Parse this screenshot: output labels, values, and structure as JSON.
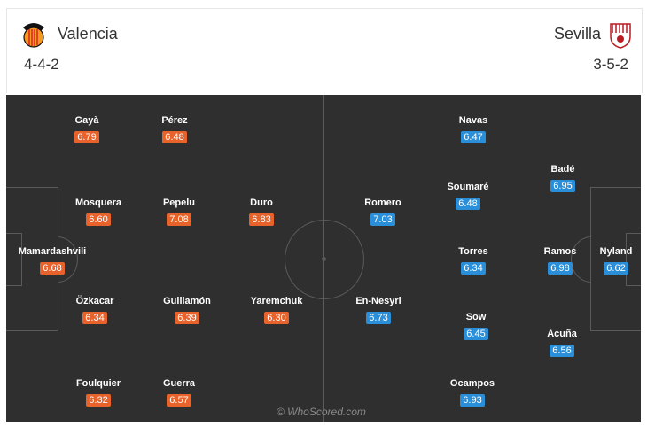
{
  "home": {
    "name": "Valencia",
    "formation": "4-4-2",
    "color": "#e8632b",
    "players": [
      {
        "name": "Gayà",
        "rating": "6.79"
      },
      {
        "name": "Pérez",
        "rating": "6.48"
      },
      {
        "name": "Mosquera",
        "rating": "6.60"
      },
      {
        "name": "Pepelu",
        "rating": "7.08"
      },
      {
        "name": "Duro",
        "rating": "6.83"
      },
      {
        "name": "Mamardashvili",
        "rating": "6.68"
      },
      {
        "name": "Özkacar",
        "rating": "6.34"
      },
      {
        "name": "Guillamón",
        "rating": "6.39"
      },
      {
        "name": "Yaremchuk",
        "rating": "6.30"
      },
      {
        "name": "Foulquier",
        "rating": "6.32"
      },
      {
        "name": "Guerra",
        "rating": "6.57"
      }
    ]
  },
  "away": {
    "name": "Sevilla",
    "formation": "3-5-2",
    "color": "#2a8ed8",
    "players": [
      {
        "name": "Navas",
        "rating": "6.47"
      },
      {
        "name": "Badé",
        "rating": "6.95"
      },
      {
        "name": "Romero",
        "rating": "7.03"
      },
      {
        "name": "Soumaré",
        "rating": "6.48"
      },
      {
        "name": "Torres",
        "rating": "6.34"
      },
      {
        "name": "Ramos",
        "rating": "6.98"
      },
      {
        "name": "Nyland",
        "rating": "6.62"
      },
      {
        "name": "En-Nesyri",
        "rating": "6.73"
      },
      {
        "name": "Sow",
        "rating": "6.45"
      },
      {
        "name": "Acuña",
        "rating": "6.56"
      },
      {
        "name": "Ocampos",
        "rating": "6.93"
      }
    ]
  },
  "watermark": "© WhoScored.com",
  "icons": {
    "home_crest": "valencia-bat-crest",
    "away_crest": "sevilla-shield-crest"
  }
}
